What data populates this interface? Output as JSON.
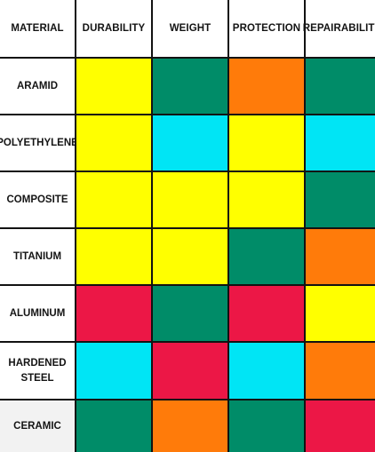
{
  "table": {
    "headers": [
      "MATERIAL",
      "DURABILITY",
      "WEIGHT",
      "PROTECTION",
      "REPAIRABILITY"
    ],
    "colors": {
      "yellow": "#ffff00",
      "green": "#008c68",
      "orange": "#ff7b0a",
      "cyan": "#00e5f5",
      "red": "#ec1746"
    },
    "rows": [
      {
        "label": "ARAMID",
        "ratings": [
          "yellow",
          "green",
          "orange",
          "green"
        ]
      },
      {
        "label": "POLYETHYLENE",
        "ratings": [
          "yellow",
          "cyan",
          "yellow",
          "cyan"
        ]
      },
      {
        "label": "COMPOSITE",
        "ratings": [
          "yellow",
          "yellow",
          "yellow",
          "green"
        ]
      },
      {
        "label": "TITANIUM",
        "ratings": [
          "yellow",
          "yellow",
          "green",
          "orange"
        ]
      },
      {
        "label": "ALUMINUM",
        "ratings": [
          "red",
          "green",
          "red",
          "yellow"
        ]
      },
      {
        "label": "HARDENED\nSTEEL",
        "ratings": [
          "cyan",
          "red",
          "cyan",
          "orange"
        ]
      },
      {
        "label": "CERAMIC",
        "ratings": [
          "green",
          "orange",
          "green",
          "red"
        ]
      }
    ]
  }
}
